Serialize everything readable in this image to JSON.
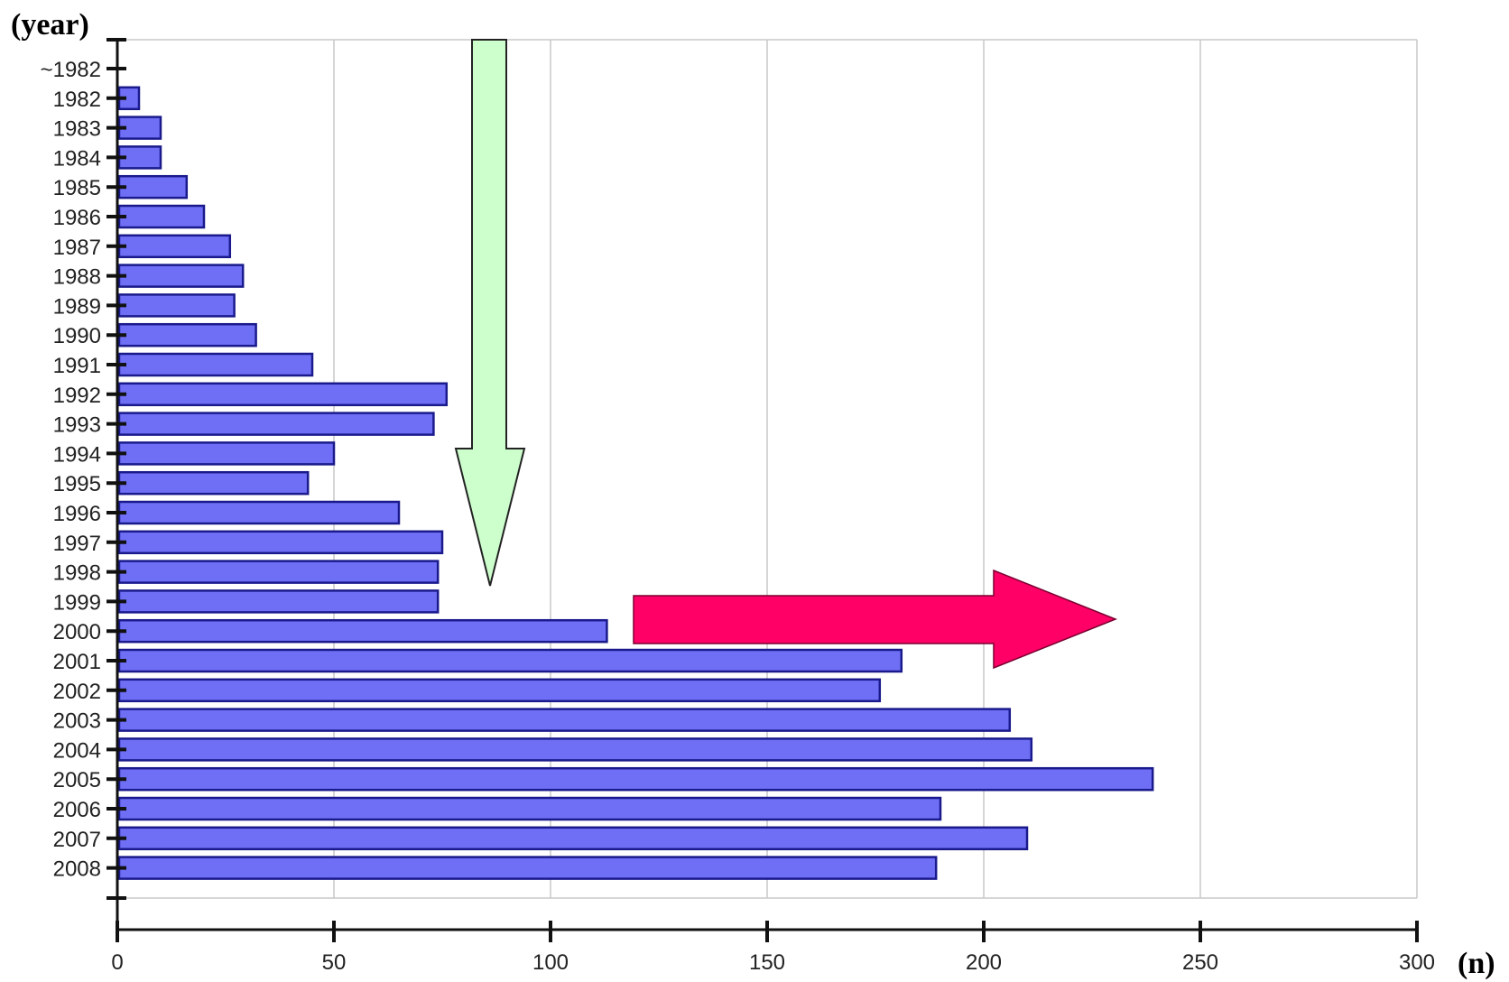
{
  "chart_data": {
    "type": "bar",
    "orientation": "horizontal",
    "ylabel": "(year)",
    "xlabel": "(n)",
    "xlim": [
      0,
      300
    ],
    "x_ticks": [
      "0",
      "50",
      "100",
      "150",
      "200",
      "250",
      "300"
    ],
    "categories": [
      "~1982",
      "1982",
      "1983",
      "1984",
      "1985",
      "1986",
      "1987",
      "1988",
      "1989",
      "1990",
      "1991",
      "1992",
      "1993",
      "1994",
      "1995",
      "1996",
      "1997",
      "1998",
      "1999",
      "2000",
      "2001",
      "2002",
      "2003",
      "2004",
      "2005",
      "2006",
      "2007",
      "2008"
    ],
    "values": [
      0,
      5,
      10,
      10,
      16,
      20,
      26,
      29,
      27,
      32,
      45,
      76,
      73,
      50,
      44,
      65,
      75,
      74,
      74,
      113,
      181,
      176,
      206,
      211,
      239,
      190,
      210,
      189
    ],
    "grid": true,
    "annotations": [
      {
        "type": "arrow",
        "direction": "down",
        "color": "#ccffcc"
      },
      {
        "type": "arrow",
        "direction": "right",
        "color": "#ff0066"
      }
    ],
    "colors": {
      "bar_fill": "#6f6ff5",
      "bar_stroke": "#1a1a8c"
    }
  }
}
